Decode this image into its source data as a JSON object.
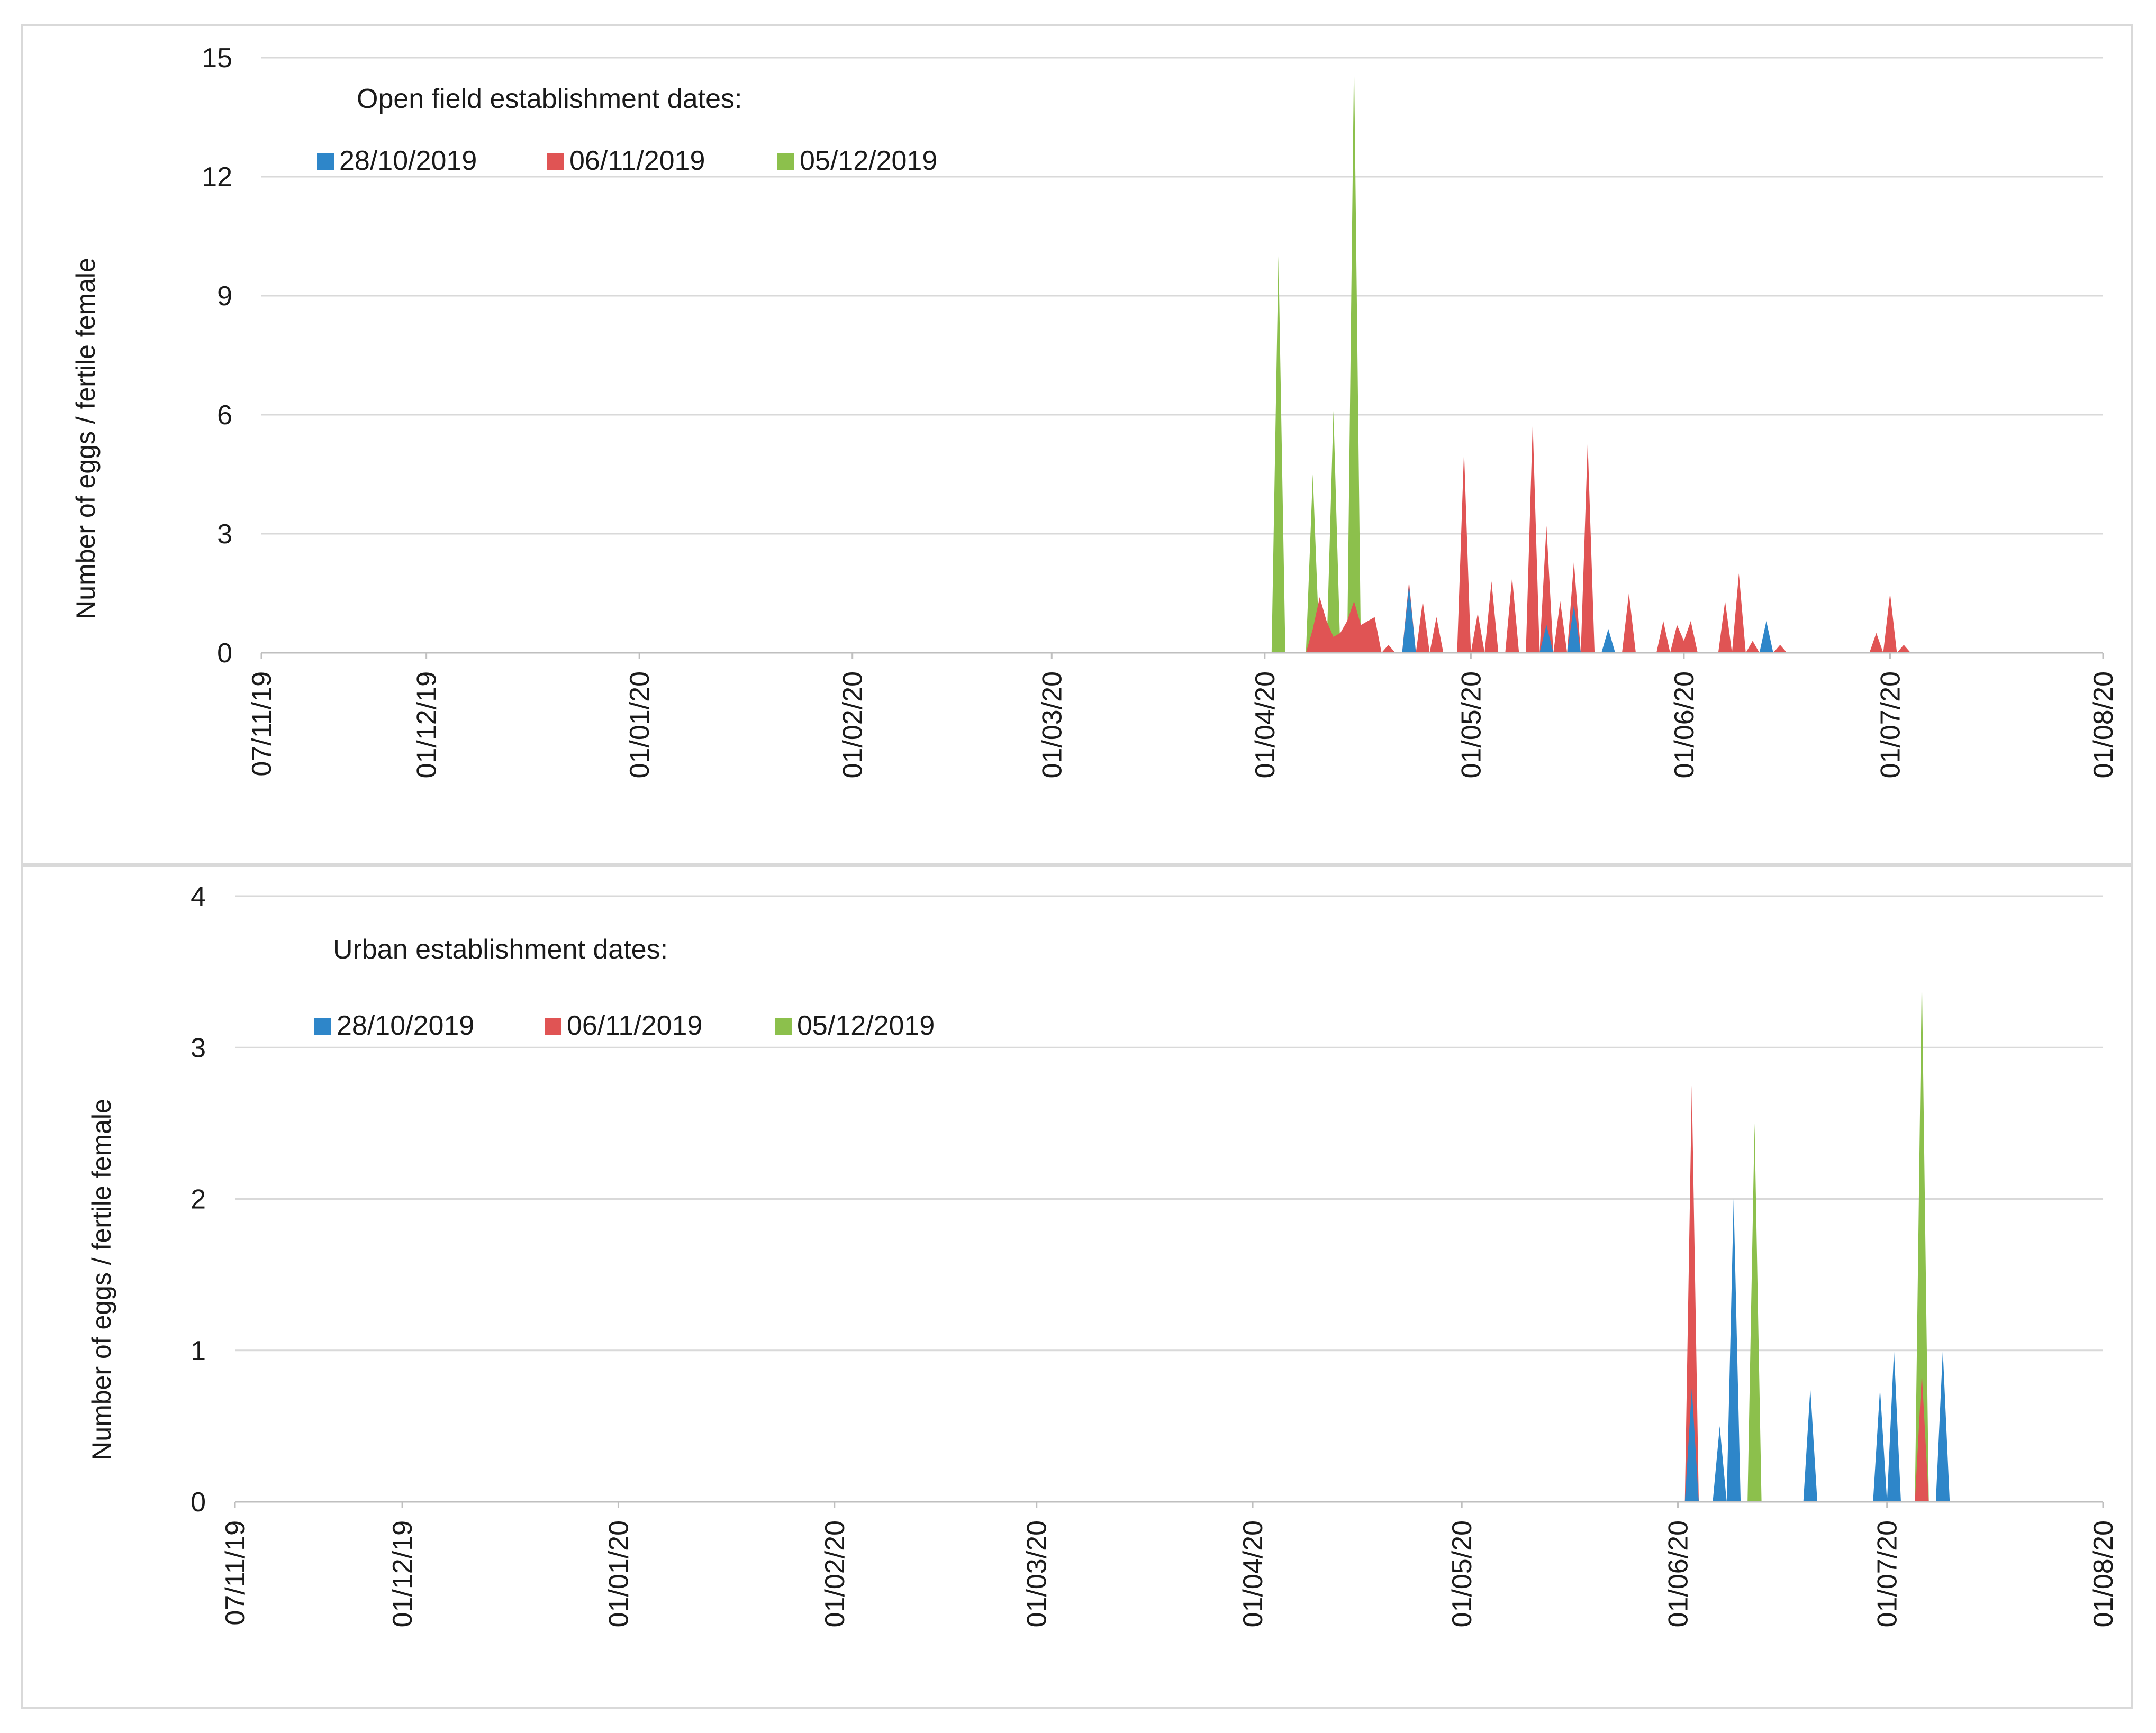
{
  "colors": {
    "blue": "#2E86C9",
    "red": "#E05454",
    "green": "#8CC04C",
    "grid": "#d9d9d9",
    "text": "#1a1a1a"
  },
  "chart_data": [
    {
      "type": "area",
      "title": "",
      "legend_title": "Open field establishment dates:",
      "xlabel": "",
      "ylabel": "Number of eggs / fertile female",
      "ylim": [
        0,
        15
      ],
      "yticks": [
        0,
        3,
        6,
        9,
        12,
        15
      ],
      "xlim": [
        "2019-11-07",
        "2020-08-01"
      ],
      "x_tick_dates": [
        "2019-11-07",
        "2019-12-01",
        "2020-01-01",
        "2020-02-01",
        "2020-03-01",
        "2020-04-01",
        "2020-05-01",
        "2020-06-01",
        "2020-07-01",
        "2020-08-01"
      ],
      "x_tick_labels": [
        "07/11/19",
        "01/12/19",
        "01/01/20",
        "01/02/20",
        "01/03/20",
        "01/04/20",
        "01/05/20",
        "01/06/20",
        "01/07/20",
        "01/08/20"
      ],
      "legend_position": "top-left",
      "series": [
        {
          "name": "28/10/2019",
          "color": "#2E86C9",
          "points": [
            [
              "2020-04-21",
              0
            ],
            [
              "2020-04-22",
              1.7
            ],
            [
              "2020-04-23",
              0
            ],
            [
              "2020-05-11",
              0
            ],
            [
              "2020-05-12",
              0.7
            ],
            [
              "2020-05-13",
              0
            ],
            [
              "2020-05-15",
              0
            ],
            [
              "2020-05-16",
              1.2
            ],
            [
              "2020-05-17",
              0
            ],
            [
              "2020-05-20",
              0
            ],
            [
              "2020-05-21",
              0.6
            ],
            [
              "2020-05-22",
              0
            ],
            [
              "2020-06-12",
              0
            ],
            [
              "2020-06-13",
              0.8
            ],
            [
              "2020-06-14",
              0
            ]
          ]
        },
        {
          "name": "06/11/2019",
          "color": "#E05454",
          "points": [
            [
              "2020-04-07",
              0
            ],
            [
              "2020-04-08",
              0.6
            ],
            [
              "2020-04-09",
              1.4
            ],
            [
              "2020-04-10",
              0.8
            ],
            [
              "2020-04-11",
              0.4
            ],
            [
              "2020-04-12",
              0.5
            ],
            [
              "2020-04-13",
              0.8
            ],
            [
              "2020-04-14",
              1.3
            ],
            [
              "2020-04-15",
              0.7
            ],
            [
              "2020-04-16",
              0.8
            ],
            [
              "2020-04-17",
              0.9
            ],
            [
              "2020-04-18",
              0
            ],
            [
              "2020-04-19",
              0.2
            ],
            [
              "2020-04-20",
              0
            ],
            [
              "2020-04-21",
              0
            ],
            [
              "2020-04-22",
              1.8
            ],
            [
              "2020-04-23",
              0
            ],
            [
              "2020-04-24",
              1.3
            ],
            [
              "2020-04-25",
              0
            ],
            [
              "2020-04-26",
              0.9
            ],
            [
              "2020-04-27",
              0
            ],
            [
              "2020-04-29",
              0
            ],
            [
              "2020-04-30",
              5.1
            ],
            [
              "2020-05-01",
              0
            ],
            [
              "2020-05-02",
              1
            ],
            [
              "2020-05-03",
              0
            ],
            [
              "2020-05-04",
              1.8
            ],
            [
              "2020-05-05",
              0
            ],
            [
              "2020-05-06",
              0
            ],
            [
              "2020-05-07",
              1.9
            ],
            [
              "2020-05-08",
              0
            ],
            [
              "2020-05-09",
              0
            ],
            [
              "2020-05-10",
              5.8
            ],
            [
              "2020-05-11",
              0
            ],
            [
              "2020-05-12",
              3.2
            ],
            [
              "2020-05-13",
              0
            ],
            [
              "2020-05-14",
              1.3
            ],
            [
              "2020-05-15",
              0
            ],
            [
              "2020-05-16",
              2.3
            ],
            [
              "2020-05-17",
              0
            ],
            [
              "2020-05-18",
              5.3
            ],
            [
              "2020-05-19",
              0
            ],
            [
              "2020-05-23",
              0
            ],
            [
              "2020-05-24",
              1.5
            ],
            [
              "2020-05-25",
              0
            ],
            [
              "2020-05-28",
              0
            ],
            [
              "2020-05-29",
              0.8
            ],
            [
              "2020-05-30",
              0
            ],
            [
              "2020-05-31",
              0.7
            ],
            [
              "2020-06-01",
              0.3
            ],
            [
              "2020-06-02",
              0.8
            ],
            [
              "2020-06-03",
              0
            ],
            [
              "2020-06-06",
              0
            ],
            [
              "2020-06-07",
              1.3
            ],
            [
              "2020-06-08",
              0
            ],
            [
              "2020-06-09",
              2.0
            ],
            [
              "2020-06-10",
              0
            ],
            [
              "2020-06-11",
              0.3
            ],
            [
              "2020-06-12",
              0
            ],
            [
              "2020-06-14",
              0
            ],
            [
              "2020-06-15",
              0.2
            ],
            [
              "2020-06-16",
              0
            ],
            [
              "2020-06-28",
              0
            ],
            [
              "2020-06-29",
              0.5
            ],
            [
              "2020-06-30",
              0
            ],
            [
              "2020-07-01",
              1.5
            ],
            [
              "2020-07-02",
              0
            ],
            [
              "2020-07-03",
              0.2
            ],
            [
              "2020-07-04",
              0
            ]
          ]
        },
        {
          "name": "05/12/2019",
          "color": "#8CC04C",
          "points": [
            [
              "2020-04-02",
              0
            ],
            [
              "2020-04-03",
              10
            ],
            [
              "2020-04-04",
              0
            ],
            [
              "2020-04-07",
              0
            ],
            [
              "2020-04-08",
              4.5
            ],
            [
              "2020-04-09",
              0
            ],
            [
              "2020-04-10",
              0
            ],
            [
              "2020-04-11",
              6.1
            ],
            [
              "2020-04-12",
              0
            ],
            [
              "2020-04-13",
              0
            ],
            [
              "2020-04-14",
              15
            ],
            [
              "2020-04-15",
              0
            ]
          ]
        }
      ]
    },
    {
      "type": "area",
      "title": "",
      "legend_title": "Urban establishment dates:",
      "xlabel": "",
      "ylabel": "Number of eggs / fertile female",
      "ylim": [
        0,
        4
      ],
      "yticks": [
        0,
        1,
        2,
        3,
        4
      ],
      "xlim": [
        "2019-11-07",
        "2020-08-01"
      ],
      "x_tick_dates": [
        "2019-11-07",
        "2019-12-01",
        "2020-01-01",
        "2020-02-01",
        "2020-03-01",
        "2020-04-01",
        "2020-05-01",
        "2020-06-01",
        "2020-07-01",
        "2020-08-01"
      ],
      "x_tick_labels": [
        "07/11/19",
        "01/12/19",
        "01/01/20",
        "01/02/20",
        "01/03/20",
        "01/04/20",
        "01/05/20",
        "01/06/20",
        "01/07/20",
        "01/08/20"
      ],
      "legend_position": "top-left",
      "series": [
        {
          "name": "28/10/2019",
          "color": "#2E86C9",
          "points": [
            [
              "2020-06-02",
              0
            ],
            [
              "2020-06-03",
              0.75
            ],
            [
              "2020-06-04",
              0
            ],
            [
              "2020-06-06",
              0
            ],
            [
              "2020-06-07",
              0.5
            ],
            [
              "2020-06-08",
              0
            ],
            [
              "2020-06-08",
              0
            ],
            [
              "2020-06-09",
              2.0
            ],
            [
              "2020-06-10",
              0
            ],
            [
              "2020-06-19",
              0
            ],
            [
              "2020-06-20",
              0.75
            ],
            [
              "2020-06-21",
              0
            ],
            [
              "2020-06-29",
              0
            ],
            [
              "2020-06-30",
              0.75
            ],
            [
              "2020-07-01",
              0
            ],
            [
              "2020-07-01",
              0
            ],
            [
              "2020-07-02",
              1.0
            ],
            [
              "2020-07-03",
              0
            ],
            [
              "2020-07-08",
              0
            ],
            [
              "2020-07-09",
              1.0
            ],
            [
              "2020-07-10",
              0
            ]
          ]
        },
        {
          "name": "06/11/2019",
          "color": "#E05454",
          "points": [
            [
              "2020-06-02",
              0
            ],
            [
              "2020-06-03",
              2.75
            ],
            [
              "2020-06-04",
              0
            ],
            [
              "2020-07-05",
              0
            ],
            [
              "2020-07-06",
              0.85
            ],
            [
              "2020-07-07",
              0
            ]
          ]
        },
        {
          "name": "05/12/2019",
          "color": "#8CC04C",
          "points": [
            [
              "2020-06-11",
              0
            ],
            [
              "2020-06-12",
              2.5
            ],
            [
              "2020-06-13",
              0
            ],
            [
              "2020-07-05",
              0
            ],
            [
              "2020-07-06",
              3.5
            ],
            [
              "2020-07-07",
              0
            ]
          ]
        }
      ]
    }
  ]
}
